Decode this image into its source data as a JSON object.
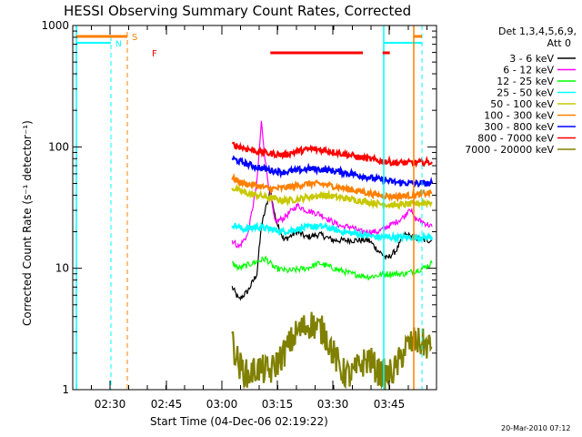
{
  "chart_data": {
    "type": "line",
    "title": "HESSI Observing Summary Count Rates, Corrected",
    "xlabel": "Start Time (04-Dec-06 02:19:22)",
    "ylabel": "Corrected Count Rate (s⁻¹ detector⁻¹)",
    "yscale": "log",
    "ylim": [
      1,
      1000
    ],
    "xlim_minutes": [
      0,
      36
    ],
    "x_ticks": [
      "02:30",
      "02:45",
      "03:00",
      "03:15",
      "03:30",
      "03:45"
    ],
    "y_ticks": [
      "1",
      "10",
      "100",
      "1000"
    ],
    "legend_header": [
      "Det 1,3,4,5,6,9,",
      "Att 0"
    ],
    "legend_position": "right",
    "footer_date": "20-Mar-2010 07:12",
    "series": [
      {
        "name": "3 - 6 keV",
        "color": "#000000",
        "x": [
          35.5,
          37,
          39,
          41,
          42,
          44,
          45,
          47,
          50,
          52,
          55,
          58,
          60,
          62,
          64,
          66,
          68,
          70,
          72,
          74,
          76,
          78,
          80
        ],
        "y": [
          7,
          5.5,
          6.5,
          9,
          22,
          45,
          27,
          17,
          20,
          18,
          19,
          17,
          17,
          17,
          17,
          17,
          14,
          12,
          14,
          19,
          18,
          17,
          17
        ]
      },
      {
        "name": "6 - 12 keV",
        "color": "#ff00ff",
        "x": [
          35.5,
          37,
          39,
          41,
          42,
          43,
          44,
          45,
          47,
          50,
          52,
          55,
          58,
          60,
          62,
          64,
          66,
          68,
          70,
          72,
          74,
          75,
          76,
          78,
          80
        ],
        "y": [
          17,
          15,
          19,
          50,
          160,
          70,
          40,
          24,
          26,
          33,
          30,
          28,
          24,
          22,
          22,
          20,
          20,
          20,
          22,
          24,
          27,
          32,
          26,
          24,
          22
        ]
      },
      {
        "name": "12 - 25 keV",
        "color": "#00ff00",
        "x": [
          35.5,
          37,
          40,
          43,
          45,
          48,
          52,
          55,
          58,
          62,
          66,
          70,
          74,
          78,
          80
        ],
        "y": [
          11,
          10,
          11,
          12,
          10,
          9.5,
          10,
          11,
          10,
          9,
          8.5,
          9,
          9,
          10,
          11
        ]
      },
      {
        "name": "25 - 50 keV",
        "color": "#00ffff",
        "x": [
          35.5,
          38,
          41,
          44,
          47,
          50,
          53,
          56,
          60,
          64,
          68,
          72,
          76,
          80
        ],
        "y": [
          23,
          21,
          22,
          21,
          20,
          21,
          22,
          22,
          20,
          19,
          18,
          18,
          18,
          18
        ]
      },
      {
        "name": "50 - 100 keV",
        "color": "#c8c800",
        "x": [
          35.5,
          38,
          41,
          44,
          47,
          50,
          53,
          56,
          60,
          64,
          68,
          72,
          76,
          80
        ],
        "y": [
          46,
          42,
          40,
          38,
          36,
          37,
          39,
          40,
          38,
          36,
          34,
          33,
          34,
          35
        ]
      },
      {
        "name": "100 - 300 keV",
        "color": "#ff8000",
        "x": [
          35.5,
          38,
          41,
          44,
          47,
          50,
          53,
          56,
          60,
          64,
          68,
          72,
          76,
          80
        ],
        "y": [
          55,
          50,
          48,
          45,
          46,
          48,
          50,
          49,
          46,
          43,
          40,
          39,
          40,
          42
        ]
      },
      {
        "name": "300 - 800 keV",
        "color": "#0000ff",
        "x": [
          35.5,
          38,
          41,
          44,
          47,
          50,
          53,
          56,
          60,
          64,
          68,
          72,
          76,
          80
        ],
        "y": [
          80,
          74,
          68,
          64,
          62,
          64,
          66,
          65,
          62,
          58,
          54,
          51,
          50,
          50
        ]
      },
      {
        "name": "800 - 7000 keV",
        "color": "#ff0000",
        "x": [
          35.5,
          38,
          41,
          44,
          47,
          50,
          53,
          56,
          60,
          64,
          68,
          72,
          76,
          80
        ],
        "y": [
          105,
          98,
          92,
          88,
          86,
          92,
          96,
          94,
          88,
          82,
          77,
          74,
          74,
          75
        ]
      },
      {
        "name": "7000 - 20000 keV",
        "color": "#808000",
        "x": [
          35.5,
          37,
          39,
          41,
          44,
          47,
          50,
          53,
          56,
          58,
          60,
          62,
          64,
          66,
          68,
          70,
          72,
          74,
          76,
          78,
          80
        ],
        "y": [
          2.5,
          1.6,
          1.3,
          1.5,
          1.4,
          2,
          3,
          3.5,
          3,
          2,
          1.4,
          1.3,
          1.6,
          1.8,
          1.4,
          1.3,
          1.5,
          2.2,
          2.5,
          2.4,
          2.2
        ]
      }
    ],
    "annotations": {
      "flare_label": "F",
      "saa_label": "S",
      "night_label": "N",
      "flare_intervals_minutes": [
        [
          44,
          64
        ],
        [
          69,
          70
        ]
      ]
    }
  }
}
